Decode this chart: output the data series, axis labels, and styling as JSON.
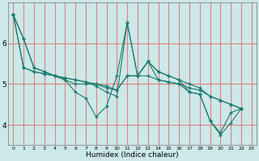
{
  "bg_color": "#cce8e8",
  "grid_color": "#f0a0a0",
  "line_color": "#1a7a6e",
  "marker_color": "#1a7a6e",
  "xlabel": "Humidex (Indice chaleur)",
  "xlim": [
    -0.5,
    23.5
  ],
  "ylim": [
    3.5,
    7.0
  ],
  "yticks": [
    4,
    5,
    6
  ],
  "xticks": [
    0,
    1,
    2,
    3,
    4,
    5,
    6,
    7,
    8,
    9,
    10,
    11,
    12,
    13,
    14,
    15,
    16,
    17,
    18,
    19,
    20,
    21,
    22,
    23
  ],
  "series": [
    [
      6.7,
      6.1,
      5.4,
      5.3,
      5.2,
      5.1,
      4.8,
      4.65,
      4.2,
      4.45,
      5.2,
      6.5,
      5.2,
      5.55,
      5.1,
      5.05,
      5.0,
      4.8,
      4.75,
      4.1,
      3.8,
      4.3,
      4.4
    ],
    [
      6.7,
      6.1,
      5.4,
      5.3,
      5.2,
      5.1,
      5.0,
      5.0,
      5.0,
      4.9,
      4.85,
      5.2,
      5.2,
      5.2,
      5.1,
      5.05,
      5.0,
      4.9,
      4.85,
      4.7,
      4.6,
      4.5,
      4.4
    ],
    [
      6.7,
      5.4,
      5.3,
      5.25,
      5.2,
      5.15,
      5.1,
      5.05,
      5.0,
      4.95,
      4.85,
      5.2,
      5.2,
      5.55,
      5.3,
      5.2,
      5.1,
      5.0,
      4.9,
      4.7,
      4.6,
      4.5,
      4.4
    ],
    [
      6.7,
      5.4,
      5.3,
      5.25,
      5.2,
      5.15,
      5.1,
      5.05,
      4.95,
      4.8,
      4.7,
      6.5,
      5.2,
      5.55,
      5.3,
      5.2,
      5.1,
      4.8,
      4.75,
      4.1,
      3.75,
      4.05,
      4.4
    ]
  ]
}
